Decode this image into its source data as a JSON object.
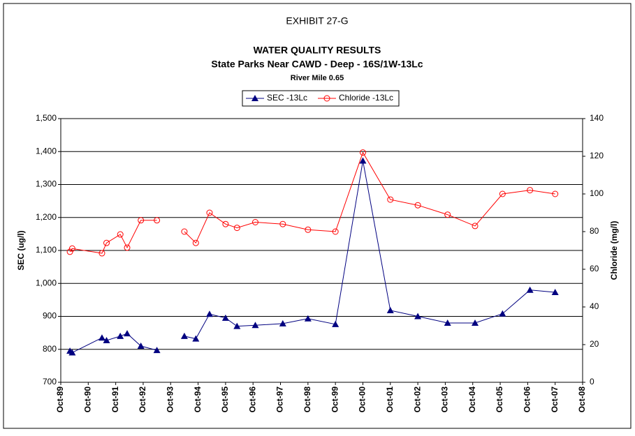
{
  "chart_data": {
    "type": "line",
    "title": "EXHIBIT 27-G",
    "subtitle": [
      "WATER QUALITY RESULTS",
      "State Parks Near CAWD - Deep - 16S/1W-13Lc",
      "River Mile 0.65"
    ],
    "y_label": "SEC (ug/l)",
    "y2_label": "Chloride (mg/l)",
    "x": [
      "1990-02",
      "1990-03",
      "1991-04",
      "1991-06",
      "1991-12",
      "1992-03",
      "1992-09",
      "1993-04",
      "1993-10",
      "1994-04",
      "1994-09",
      "1995-03",
      "1995-10",
      "1996-03",
      "1996-11",
      "1997-11",
      "1998-10",
      "1999-10",
      "2000-10",
      "2001-10",
      "2002-10",
      "2003-11",
      "2004-11",
      "2005-11",
      "2006-11",
      "2007-10"
    ],
    "series": [
      {
        "name": "SEC -13Lc",
        "color": "#000080",
        "marker": "triangle",
        "values": [
          795,
          790,
          835,
          827,
          840,
          848,
          810,
          797,
          null,
          840,
          832,
          907,
          895,
          870,
          873,
          878,
          893,
          876,
          1372,
          918,
          900,
          880,
          880,
          908,
          980,
          973
        ]
      },
      {
        "name": "Chloride -13Lc",
        "color": "#ff0000",
        "marker": "circle",
        "axis": "y2",
        "values": [
          69.3,
          71,
          68.5,
          74,
          78.5,
          71.5,
          86,
          86,
          null,
          80,
          74,
          90,
          84,
          82,
          85,
          84,
          81,
          80,
          122,
          97,
          94,
          89,
          83,
          100,
          102,
          100
        ]
      }
    ],
    "xlim": [
      "1989-10",
      "2008-10"
    ],
    "xticks": [
      {
        "value": "1989-10",
        "label": "Oct-89"
      },
      {
        "value": "1990-10",
        "label": "Oct-90"
      },
      {
        "value": "1991-10",
        "label": "Oct-91"
      },
      {
        "value": "1992-10",
        "label": "Oct-92"
      },
      {
        "value": "1993-10",
        "label": "Oct-93"
      },
      {
        "value": "1994-10",
        "label": "Oct-94"
      },
      {
        "value": "1995-10",
        "label": "Oct-95"
      },
      {
        "value": "1996-10",
        "label": "Oct-96"
      },
      {
        "value": "1997-10",
        "label": "Oct-97"
      },
      {
        "value": "1998-10",
        "label": "Oct-98"
      },
      {
        "value": "1999-10",
        "label": "Oct-99"
      },
      {
        "value": "2000-10",
        "label": "Oct-00"
      },
      {
        "value": "2001-10",
        "label": "Oct-01"
      },
      {
        "value": "2002-10",
        "label": "Oct-02"
      },
      {
        "value": "2003-10",
        "label": "Oct-03"
      },
      {
        "value": "2004-10",
        "label": "Oct-04"
      },
      {
        "value": "2005-10",
        "label": "Oct-05"
      },
      {
        "value": "2006-10",
        "label": "Oct-06"
      },
      {
        "value": "2007-10",
        "label": "Oct-07"
      },
      {
        "value": "2008-10",
        "label": "Oct-08"
      }
    ],
    "ylim": [
      700,
      1500
    ],
    "yticks": [
      700,
      800,
      900,
      {
        "value": 1000,
        "label": "1,000"
      },
      {
        "value": 1100,
        "label": "1,100"
      },
      {
        "value": 1200,
        "label": "1,200"
      },
      {
        "value": 1300,
        "label": "1,300"
      },
      {
        "value": 1400,
        "label": "1,400"
      },
      {
        "value": 1500,
        "label": "1,500"
      }
    ],
    "y2lim": [
      0,
      140
    ],
    "y2ticks": [
      0,
      20,
      40,
      60,
      80,
      100,
      120,
      140
    ],
    "grid": true,
    "legend": "top"
  }
}
